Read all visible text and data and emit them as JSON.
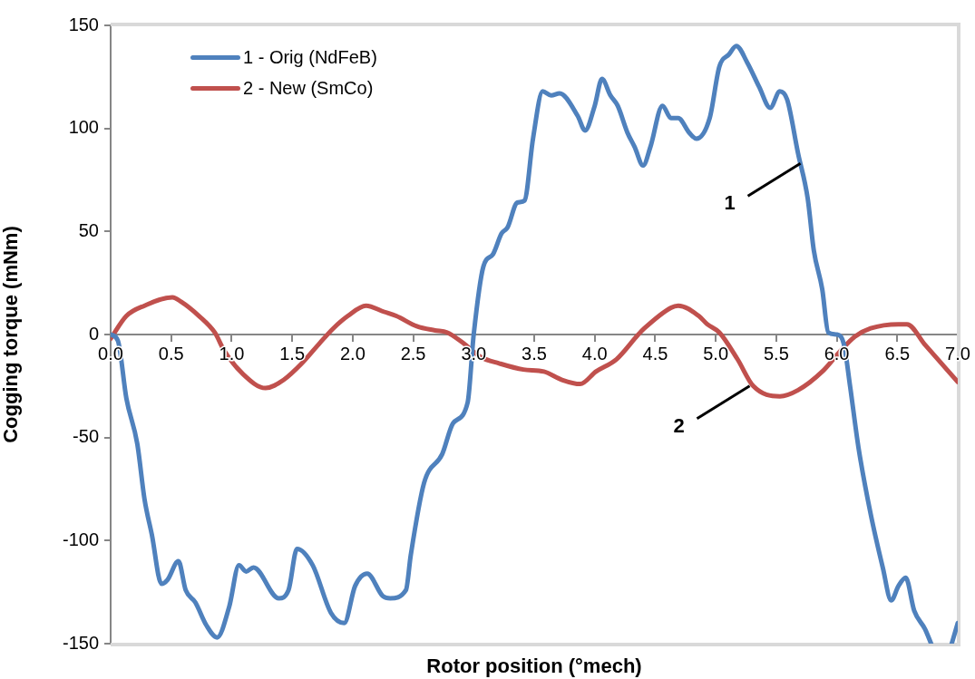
{
  "chart_data": {
    "type": "line",
    "xlabel": "Rotor position (°mech)",
    "ylabel": "Cogging torque (mNm)",
    "xlim": [
      0,
      7
    ],
    "xticks": [
      {
        "value": 0,
        "label": "0.0"
      },
      0.5,
      {
        "value": 1,
        "label": "1.0"
      },
      1.5,
      {
        "value": 2,
        "label": "2.0"
      },
      2.5,
      {
        "value": 3,
        "label": "3.0"
      },
      3.5,
      {
        "value": 4,
        "label": "4.0"
      },
      4.5,
      {
        "value": 5,
        "label": "5.0"
      },
      5.5,
      {
        "value": 6,
        "label": "6.0"
      },
      6.5,
      {
        "value": 7,
        "label": "7.0"
      }
    ],
    "ylim": [
      -150,
      150
    ],
    "yticks": [
      -150,
      -100,
      -50,
      0,
      50,
      100,
      150
    ],
    "legend": "top left",
    "annotations": [
      {
        "text": "1",
        "x": 5.7,
        "y": 83
      },
      {
        "text": "2",
        "x": 5.28,
        "y": -25
      }
    ],
    "series": [
      {
        "name": "1 - Orig (NdFeB)",
        "color": "#4f81bd",
        "x": [
          0,
          0.06,
          0.13,
          0.22,
          0.28,
          0.34,
          0.42,
          0.47,
          0.56,
          0.62,
          0.7,
          0.79,
          0.88,
          0.98,
          1.06,
          1.12,
          1.18,
          1.39,
          1.47,
          1.54,
          1.67,
          1.82,
          1.93,
          2.02,
          2.12,
          2.25,
          2.31,
          2.44,
          2.48,
          2.59,
          2.74,
          2.83,
          2.95,
          3.0,
          3.08,
          3.16,
          3.23,
          3.28,
          3.36,
          3.42,
          3.49,
          3.57,
          3.64,
          3.71,
          3.86,
          3.92,
          4.0,
          4.06,
          4.13,
          4.19,
          4.27,
          4.33,
          4.4,
          4.46,
          4.56,
          4.63,
          4.69,
          4.78,
          4.84,
          4.95,
          5.03,
          5.11,
          5.17,
          5.26,
          5.36,
          5.45,
          5.53,
          5.59,
          5.68,
          5.76,
          5.81,
          5.88,
          5.93,
          6.0,
          6.06,
          6.11,
          6.18,
          6.28,
          6.38,
          6.45,
          6.51,
          6.57,
          6.64,
          6.73,
          6.78,
          6.86,
          6.95,
          7.0
        ],
        "values": [
          0,
          -3,
          -31,
          -53,
          -80,
          -97,
          -121,
          -119,
          -110,
          -124,
          -130,
          -141,
          -147,
          -132,
          -112,
          -115,
          -113,
          -128,
          -124,
          -104,
          -112,
          -135,
          -140,
          -122,
          -116,
          -127,
          -128,
          -124,
          -107,
          -72,
          -58,
          -43,
          -33,
          0,
          33,
          39,
          49,
          52,
          64,
          65,
          95,
          118,
          116,
          117,
          106,
          99,
          111,
          124,
          116,
          111,
          98,
          91,
          82,
          91,
          111,
          105,
          105,
          98,
          95,
          105,
          130,
          136,
          140,
          132,
          120,
          110,
          118,
          114,
          88,
          66,
          41,
          22,
          1,
          0,
          -5,
          -25,
          -55,
          -87,
          -113,
          -129,
          -122,
          -118,
          -134,
          -143,
          -150,
          null,
          -150,
          -140
        ]
      },
      {
        "name": "2 - New (SmCo)",
        "color": "#c0504d",
        "x": [
          0,
          0.13,
          0.28,
          0.51,
          0.58,
          0.73,
          0.86,
          0.94,
          1.09,
          1.28,
          1.43,
          1.58,
          1.73,
          1.84,
          1.96,
          2.11,
          2.26,
          2.36,
          2.53,
          2.68,
          2.78,
          2.91,
          3.06,
          3.21,
          3.41,
          3.58,
          3.73,
          3.88,
          4.01,
          4.18,
          4.36,
          4.41,
          4.63,
          4.69,
          4.86,
          4.93,
          5.03,
          5.18,
          5.31,
          5.53,
          5.68,
          5.88,
          6.03,
          6.15,
          6.28,
          6.51,
          6.58,
          6.73,
          6.88,
          7.0
        ],
        "values": [
          -2,
          9,
          14,
          18,
          16,
          9,
          1,
          -8,
          -19,
          -26,
          -22,
          -14,
          -4,
          3,
          9,
          14,
          11,
          9,
          4,
          2,
          1,
          -4,
          -11,
          -14,
          -17,
          -18,
          -22,
          -24,
          -18,
          -12,
          0,
          3,
          13,
          14,
          9,
          5,
          1,
          -12,
          -25,
          -30,
          -27,
          -18,
          -8,
          -1,
          3,
          5,
          5,
          -5,
          -15,
          -23
        ]
      }
    ]
  }
}
